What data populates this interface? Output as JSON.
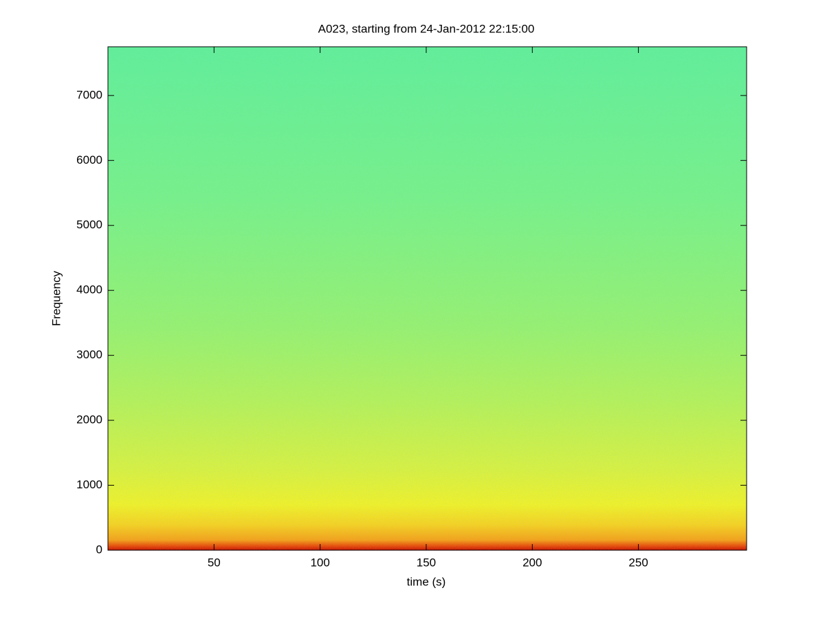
{
  "chart_data": {
    "type": "spectrogram",
    "title": "A023, starting from 24-Jan-2012 22:15:00",
    "x_label": "time (s)",
    "y_label": "Frequency",
    "xlim": [
      0,
      301
    ],
    "xticks": [
      50,
      100,
      150,
      200,
      250
    ],
    "ylim": [
      0,
      7750
    ],
    "yticks": [
      0,
      1000,
      2000,
      3000,
      4000,
      5000,
      6000,
      7000
    ]
  }
}
